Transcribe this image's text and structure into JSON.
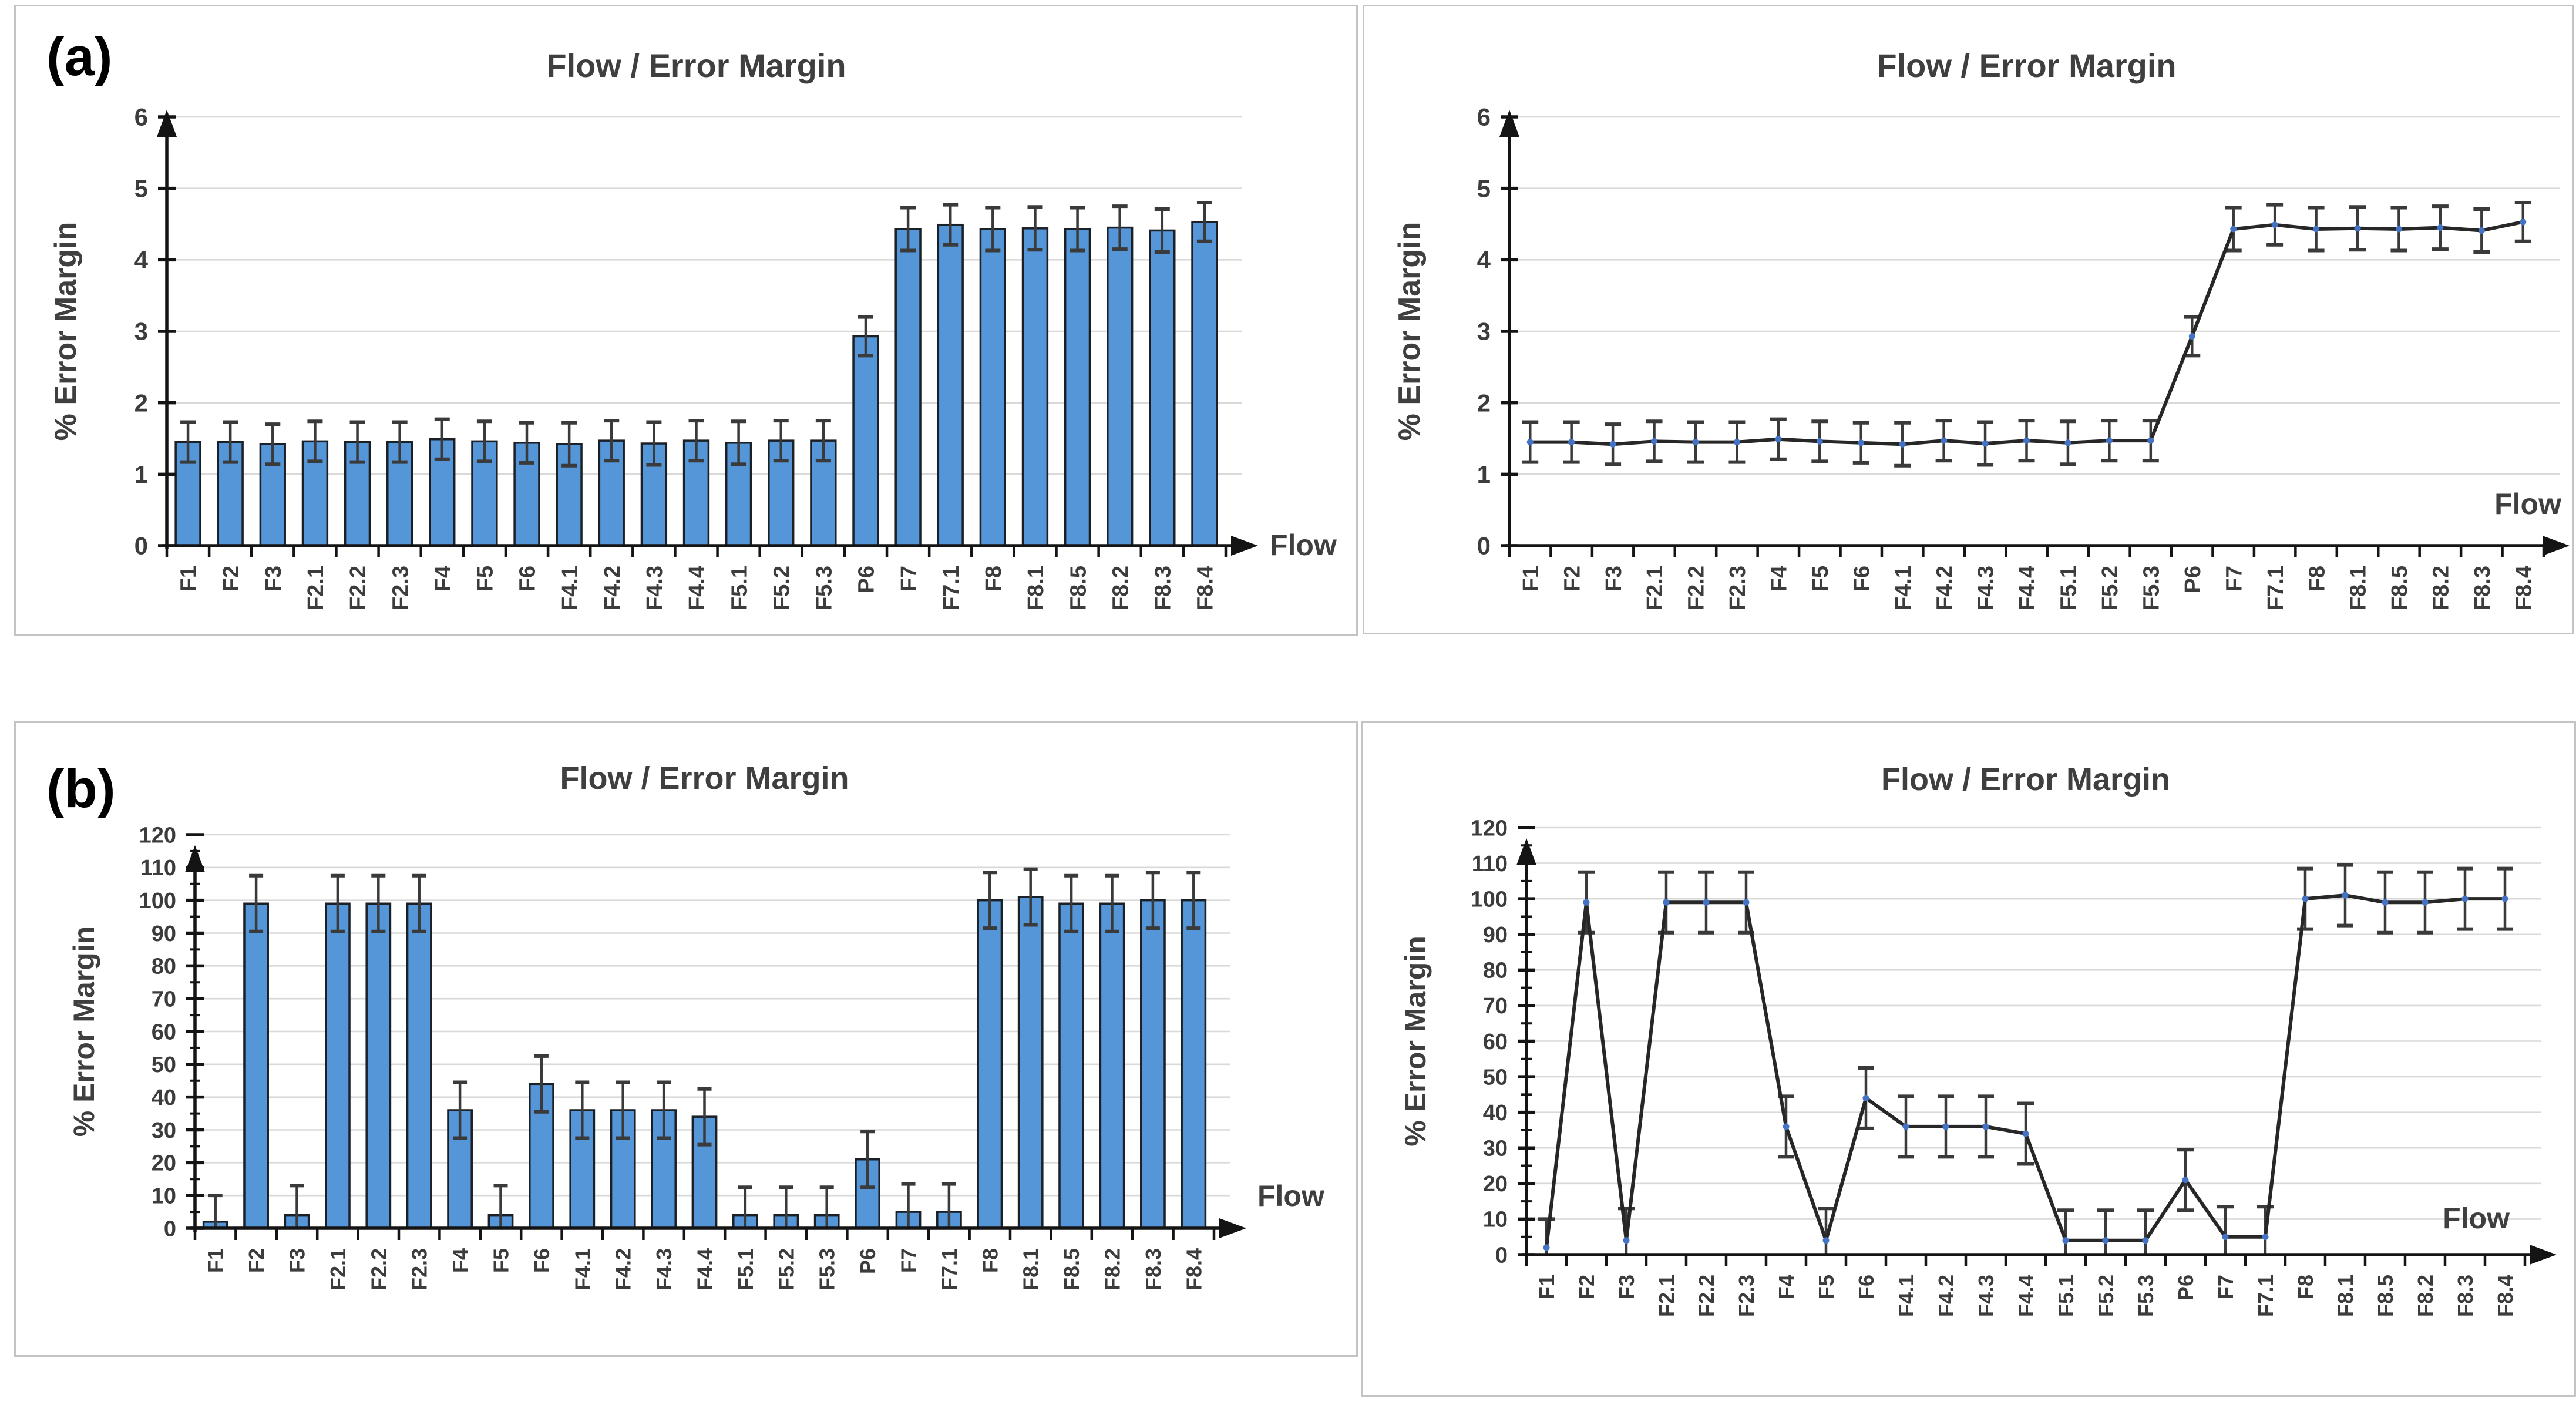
{
  "figure_labels": {
    "a": "(a)",
    "b": "(b)"
  },
  "colors": {
    "bar_fill": "#5496d7",
    "bar_stroke": "#1b1f26",
    "error_bar": "#3a3a3a",
    "line": "#272727",
    "marker": "#4472c4",
    "grid": "#d9d9d9",
    "axis": "#141414",
    "text": "#3c3c3c",
    "title": "#3f3f3f",
    "panel_border": "#c4c4c4",
    "background": "#ffffff"
  },
  "chart_data": [
    {
      "id": "a_bar",
      "panel": "top-left",
      "type": "bar",
      "title": "Flow /  Error Margin",
      "xlabel": "Flow",
      "ylabel": "% Error Margin",
      "ylim": [
        0,
        6
      ],
      "yticks": [
        0,
        1,
        2,
        3,
        4,
        5,
        6
      ],
      "grid": true,
      "legend": "none",
      "categories": [
        "F1",
        "F2",
        "F3",
        "F2.1",
        "F2.2",
        "F2.3",
        "F4",
        "F5",
        "F6",
        "F4.1",
        "F4.2",
        "F4.3",
        "F4.4",
        "F5.1",
        "F5.2",
        "F5.3",
        "P6",
        "F7",
        "F7.1",
        "F8",
        "F8.1",
        "F8.5",
        "F8.2",
        "F8.3",
        "F8.4"
      ],
      "values": [
        1.45,
        1.45,
        1.42,
        1.46,
        1.45,
        1.45,
        1.49,
        1.46,
        1.44,
        1.42,
        1.47,
        1.43,
        1.47,
        1.44,
        1.47,
        1.47,
        2.93,
        4.43,
        4.49,
        4.43,
        4.44,
        4.43,
        4.45,
        4.41,
        4.53
      ],
      "errors": [
        0.28,
        0.28,
        0.28,
        0.28,
        0.28,
        0.28,
        0.28,
        0.28,
        0.28,
        0.3,
        0.28,
        0.3,
        0.28,
        0.3,
        0.28,
        0.28,
        0.27,
        0.3,
        0.28,
        0.3,
        0.3,
        0.3,
        0.3,
        0.3,
        0.27
      ]
    },
    {
      "id": "a_line",
      "panel": "top-right",
      "type": "line",
      "title": "Flow /  Error Margin",
      "xlabel": "Flow",
      "ylabel": "% Error Margin",
      "ylim": [
        0,
        6
      ],
      "yticks": [
        0,
        1,
        2,
        3,
        4,
        5,
        6
      ],
      "grid": true,
      "legend": "none",
      "categories": [
        "F1",
        "F2",
        "F3",
        "F2.1",
        "F2.2",
        "F2.3",
        "F4",
        "F5",
        "F6",
        "F4.1",
        "F4.2",
        "F4.3",
        "F4.4",
        "F5.1",
        "F5.2",
        "F5.3",
        "P6",
        "F7",
        "F7.1",
        "F8",
        "F8.1",
        "F8.5",
        "F8.2",
        "F8.3",
        "F8.4"
      ],
      "values": [
        1.45,
        1.45,
        1.42,
        1.46,
        1.45,
        1.45,
        1.49,
        1.46,
        1.44,
        1.42,
        1.47,
        1.43,
        1.47,
        1.44,
        1.47,
        1.47,
        2.93,
        4.43,
        4.49,
        4.43,
        4.44,
        4.43,
        4.45,
        4.41,
        4.53
      ],
      "errors": [
        0.28,
        0.28,
        0.28,
        0.28,
        0.28,
        0.28,
        0.28,
        0.28,
        0.28,
        0.3,
        0.28,
        0.3,
        0.28,
        0.3,
        0.28,
        0.28,
        0.27,
        0.3,
        0.28,
        0.3,
        0.3,
        0.3,
        0.3,
        0.3,
        0.27
      ]
    },
    {
      "id": "b_bar",
      "panel": "bottom-left",
      "type": "bar",
      "title": "Flow / Error Margin",
      "xlabel": "Flow",
      "ylabel": "% Error Margin",
      "ylim": [
        0,
        120
      ],
      "yticks": [
        0,
        10,
        20,
        30,
        40,
        50,
        60,
        70,
        80,
        90,
        100,
        110,
        120
      ],
      "yminor_step": 5,
      "grid": true,
      "legend": "none",
      "categories": [
        "F1",
        "F2",
        "F3",
        "F2.1",
        "F2.2",
        "F2.3",
        "F4",
        "F5",
        "F6",
        "F4.1",
        "F4.2",
        "F4.3",
        "F4.4",
        "F5.1",
        "F5.2",
        "F5.3",
        "P6",
        "F7",
        "F7.1",
        "F8",
        "F8.1",
        "F8.5",
        "F8.2",
        "F8.3",
        "F8.4"
      ],
      "values": [
        2,
        99,
        4,
        99,
        99,
        99,
        36,
        4,
        44,
        36,
        36,
        36,
        34,
        4,
        4,
        4,
        21,
        5,
        5,
        100,
        101,
        99,
        99,
        100,
        100
      ],
      "errors": [
        8,
        8.5,
        9,
        8.5,
        8.5,
        8.5,
        8.5,
        9,
        8.5,
        8.5,
        8.5,
        8.5,
        8.5,
        8.5,
        8.5,
        8.5,
        8.5,
        8.5,
        8.5,
        8.5,
        8.5,
        8.5,
        8.5,
        8.5,
        8.5
      ]
    },
    {
      "id": "b_line",
      "panel": "bottom-right",
      "type": "line",
      "title": "Flow / Error Margin",
      "xlabel": "Flow",
      "ylabel": "% Error Margin",
      "ylim": [
        0,
        120
      ],
      "yticks": [
        0,
        10,
        20,
        30,
        40,
        50,
        60,
        70,
        80,
        90,
        100,
        110,
        120
      ],
      "yminor_step": 5,
      "grid": true,
      "legend": "none",
      "categories": [
        "F1",
        "F2",
        "F3",
        "F2.1",
        "F2.2",
        "F2.3",
        "F4",
        "F5",
        "F6",
        "F4.1",
        "F4.2",
        "F4.3",
        "F4.4",
        "F5.1",
        "F5.2",
        "F5.3",
        "P6",
        "F7",
        "F7.1",
        "F8",
        "F8.1",
        "F8.5",
        "F8.2",
        "F8.3",
        "F8.4"
      ],
      "values": [
        2,
        99,
        4,
        99,
        99,
        99,
        36,
        4,
        44,
        36,
        36,
        36,
        34,
        4,
        4,
        4,
        21,
        5,
        5,
        100,
        101,
        99,
        99,
        100,
        100
      ],
      "errors": [
        8,
        8.5,
        9,
        8.5,
        8.5,
        8.5,
        8.5,
        9,
        8.5,
        8.5,
        8.5,
        8.5,
        8.5,
        8.5,
        8.5,
        8.5,
        8.5,
        8.5,
        8.5,
        8.5,
        8.5,
        8.5,
        8.5,
        8.5,
        8.5
      ]
    }
  ]
}
